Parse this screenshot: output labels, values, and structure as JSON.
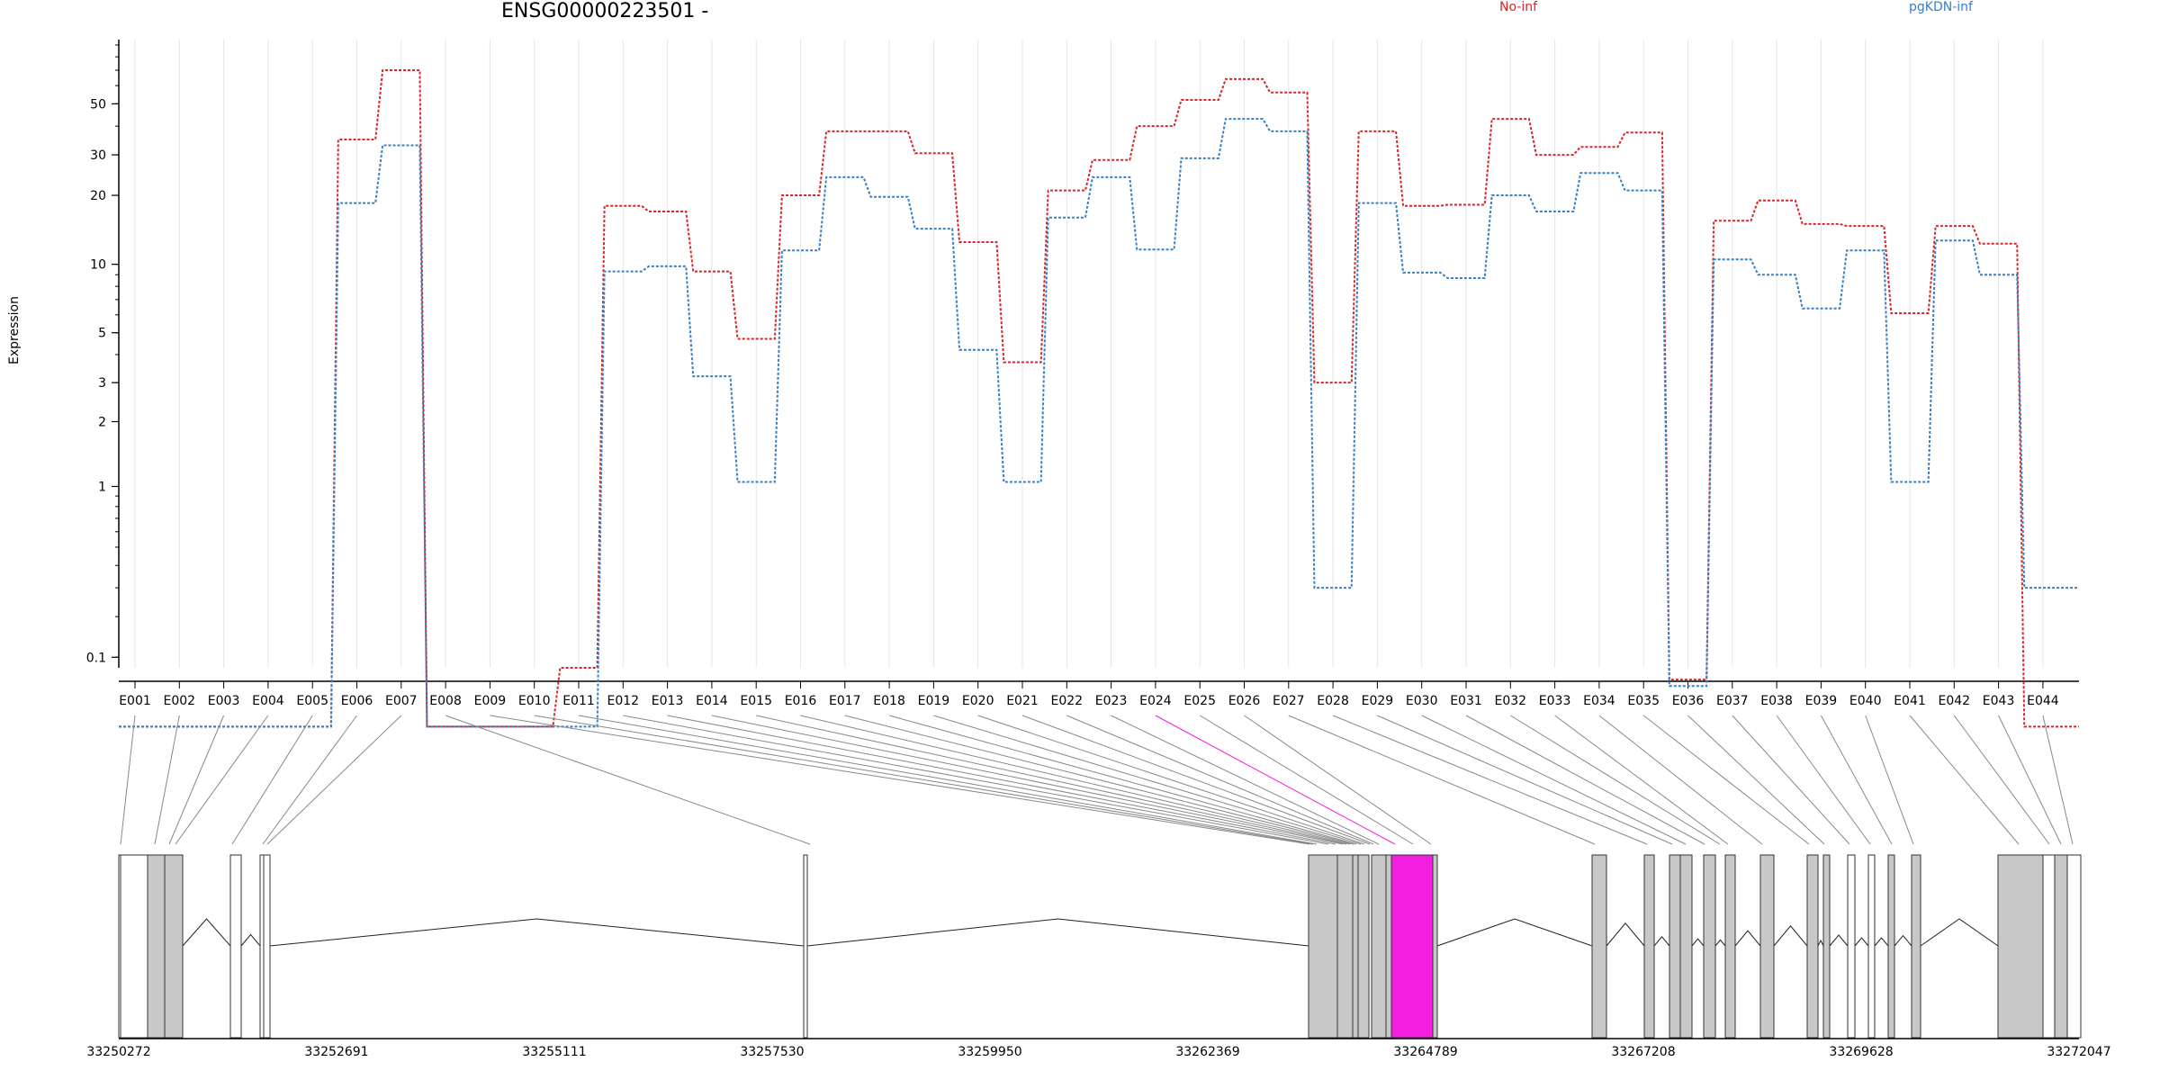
{
  "title": "ENSG00000223501 -",
  "legend": [
    {
      "label": "No-inf",
      "color": "#d62728"
    },
    {
      "label": "pgKDN-inf",
      "color": "#3a7fc4"
    }
  ],
  "colors": {
    "highlight": "#f21fe0",
    "exon_fill": "#c8c8c8",
    "axis": "#000000",
    "grid": "#e6e6e6"
  },
  "chart_data": {
    "type": "line",
    "ylabel": "Expression",
    "yscale": "log(x+0.1)",
    "ylim": [
      0.08,
      95
    ],
    "yticks": [
      0.1,
      1,
      2,
      3,
      5,
      10,
      20,
      30,
      50
    ],
    "categories": [
      "E001",
      "E002",
      "E003",
      "E004",
      "E005",
      "E006",
      "E007",
      "E008",
      "E009",
      "E010",
      "E011",
      "E012",
      "E013",
      "E014",
      "E015",
      "E016",
      "E017",
      "E018",
      "E019",
      "E020",
      "E021",
      "E022",
      "E023",
      "E024",
      "E025",
      "E026",
      "E027",
      "E028",
      "E029",
      "E030",
      "E031",
      "E032",
      "E033",
      "E034",
      "E035",
      "E036",
      "E037",
      "E038",
      "E039",
      "E040",
      "E041",
      "E042",
      "E043",
      "E044"
    ],
    "series": [
      {
        "name": "No-inf",
        "color": "#d62728",
        "values": [
          0,
          0,
          0,
          0,
          0,
          35,
          70,
          0,
          0,
          0,
          0.08,
          18,
          17,
          9.3,
          4.7,
          20,
          38,
          38,
          30.5,
          12.5,
          3.7,
          21,
          28.5,
          40,
          52,
          64,
          56,
          3,
          38,
          18,
          18.2,
          43,
          30,
          32.5,
          37.5,
          0.06,
          15.5,
          19,
          15,
          14.7,
          6.1,
          14.7,
          12.3,
          0
        ],
        "last_value": 0
      },
      {
        "name": "pgKDN-inf",
        "color": "#3a7fc4",
        "values": [
          0,
          0,
          0,
          0,
          0,
          18.5,
          33,
          0,
          0,
          0,
          0,
          9.3,
          9.8,
          3.2,
          1.05,
          11.5,
          24,
          19.7,
          14.3,
          4.2,
          1.05,
          16,
          24,
          11.6,
          29,
          43,
          38,
          0.3,
          18.5,
          9.2,
          8.7,
          20,
          17,
          25,
          21,
          0.05,
          10.5,
          9,
          6.4,
          11.5,
          1.05,
          12.7,
          9,
          0.3
        ],
        "last_value": 0.3
      }
    ],
    "gene_coords": {
      "start": 33250272,
      "end": 33272047,
      "ticks": [
        33250272,
        33252691,
        33255111,
        33257530,
        33259950,
        33262369,
        33264789,
        33267208,
        33269628,
        33272047
      ]
    },
    "highlighted_exon": "E024"
  }
}
